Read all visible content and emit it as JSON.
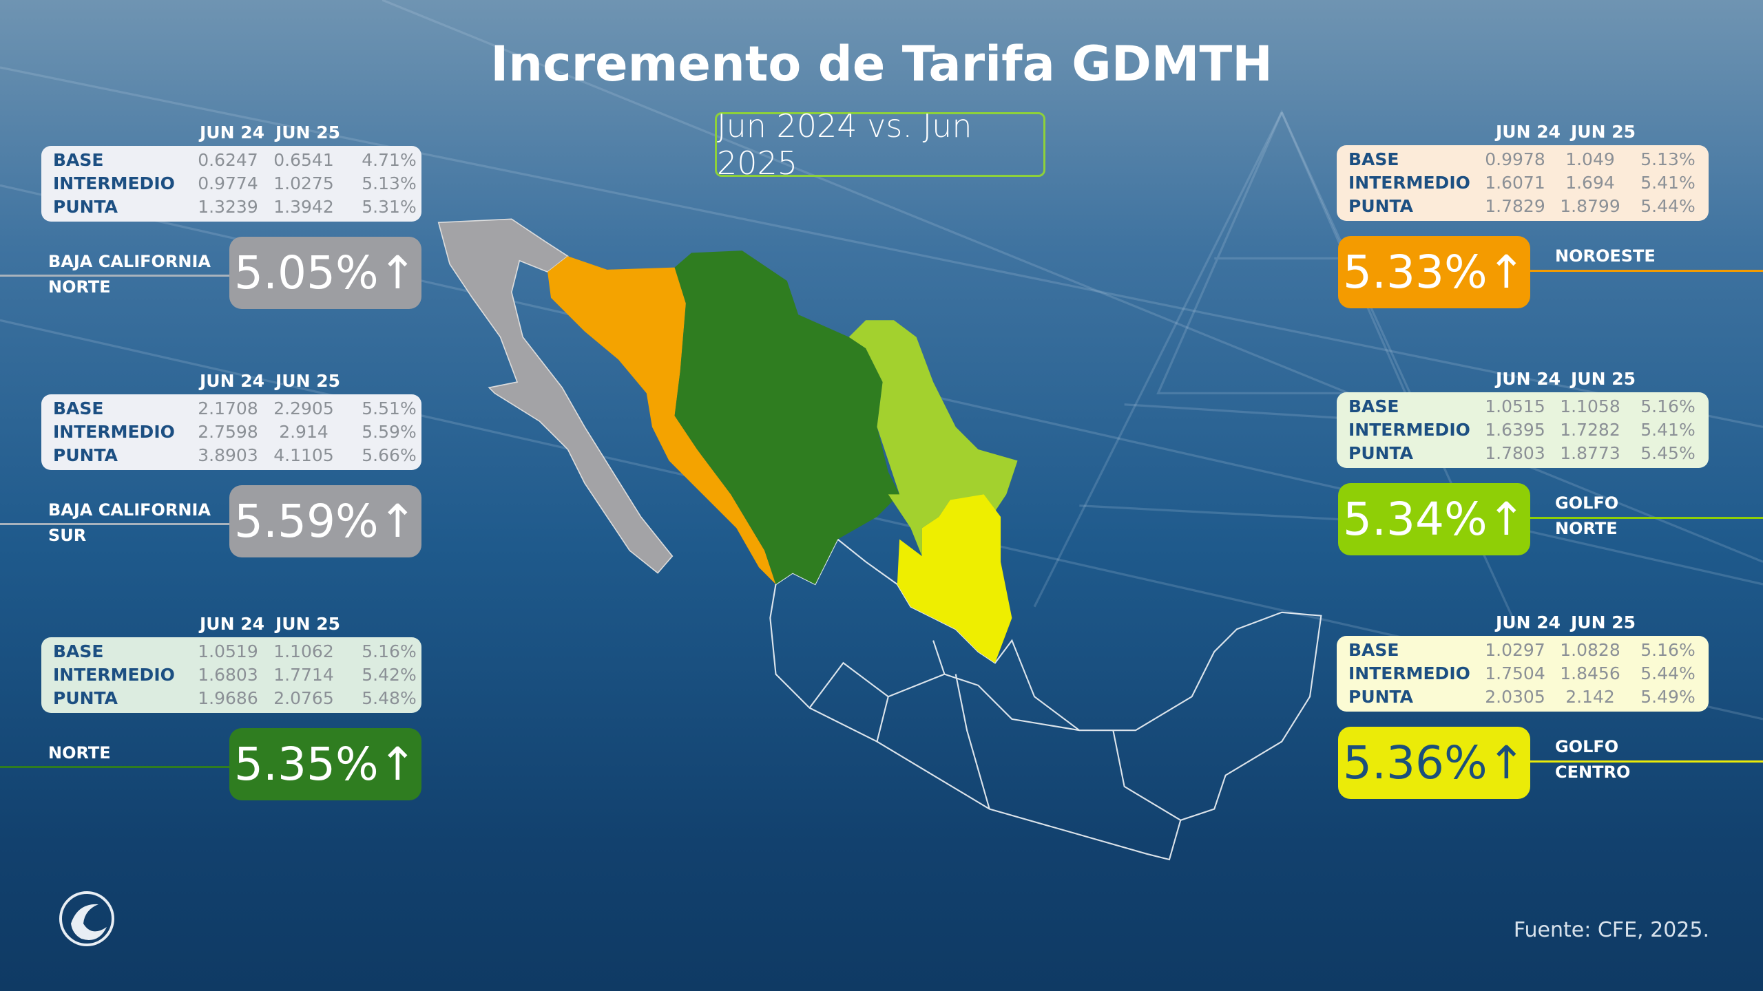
{
  "title": "Incremento de Tarifa GDMTH",
  "subtitle": "Jun 2024 vs. Jun 2025",
  "source": "Fuente: CFE, 2025.",
  "column_headers": [
    "JUN 24",
    "JUN 25"
  ],
  "regions": [
    {
      "id": "baja-california-norte",
      "side": "left",
      "name_lines": [
        "BAJA CALIFORNIA",
        "NORTE"
      ],
      "total": "5.05%↑",
      "color": "#9d9ea2",
      "table_bg": "#eef0f5",
      "line_color": "#a9b3bd",
      "rows": [
        {
          "label": "BASE",
          "jun24": "0.6247",
          "jun25": "0.6541",
          "pct": "4.71%"
        },
        {
          "label": "INTERMEDIO",
          "jun24": "0.9774",
          "jun25": "1.0275",
          "pct": "5.13%"
        },
        {
          "label": "PUNTA",
          "jun24": "1.3239",
          "jun25": "1.3942",
          "pct": "5.31%"
        }
      ]
    },
    {
      "id": "baja-california-sur",
      "side": "left",
      "name_lines": [
        "BAJA CALIFORNIA",
        "SUR"
      ],
      "total": "5.59%↑",
      "color": "#9d9ea2",
      "table_bg": "#eef0f5",
      "line_color": "#a9b3bd",
      "rows": [
        {
          "label": "BASE",
          "jun24": "2.1708",
          "jun25": "2.2905",
          "pct": "5.51%"
        },
        {
          "label": "INTERMEDIO",
          "jun24": "2.7598",
          "jun25": "2.914",
          "pct": "5.59%"
        },
        {
          "label": "PUNTA",
          "jun24": "3.8903",
          "jun25": "4.1105",
          "pct": "5.66%"
        }
      ]
    },
    {
      "id": "norte",
      "side": "left",
      "name_lines": [
        "NORTE"
      ],
      "total": "5.35%↑",
      "color": "#2f7d20",
      "table_bg": "#dcece0",
      "line_color": "#2f7d20",
      "rows": [
        {
          "label": "BASE",
          "jun24": "1.0519",
          "jun25": "1.1062",
          "pct": "5.16%"
        },
        {
          "label": "INTERMEDIO",
          "jun24": "1.6803",
          "jun25": "1.7714",
          "pct": "5.42%"
        },
        {
          "label": "PUNTA",
          "jun24": "1.9686",
          "jun25": "2.0765",
          "pct": "5.48%"
        }
      ]
    },
    {
      "id": "noroeste",
      "side": "right",
      "name_lines": [
        "NOROESTE"
      ],
      "total": "5.33%↑",
      "color": "#f49b00",
      "table_bg": "#fcebd9",
      "line_color": "#f49b00",
      "rows": [
        {
          "label": "BASE",
          "jun24": "0.9978",
          "jun25": "1.049",
          "pct": "5.13%"
        },
        {
          "label": "INTERMEDIO",
          "jun24": "1.6071",
          "jun25": "1.694",
          "pct": "5.41%"
        },
        {
          "label": "PUNTA",
          "jun24": "1.7829",
          "jun25": "1.8799",
          "pct": "5.44%"
        }
      ]
    },
    {
      "id": "golfo-norte",
      "side": "right",
      "name_lines": [
        "GOLFO",
        "NORTE"
      ],
      "total": "5.34%↑",
      "color": "#8fcf06",
      "table_bg": "#e8f4dd",
      "line_color": "#8fcf06",
      "rows": [
        {
          "label": "BASE",
          "jun24": "1.0515",
          "jun25": "1.1058",
          "pct": "5.16%"
        },
        {
          "label": "INTERMEDIO",
          "jun24": "1.6395",
          "jun25": "1.7282",
          "pct": "5.41%"
        },
        {
          "label": "PUNTA",
          "jun24": "1.7803",
          "jun25": "1.8773",
          "pct": "5.45%"
        }
      ]
    },
    {
      "id": "golfo-centro",
      "side": "right",
      "name_lines": [
        "GOLFO",
        "CENTRO"
      ],
      "total": "5.36%↑",
      "color": "#ebeb08",
      "table_bg": "#fbfbd4",
      "line_color": "#ebeb08",
      "text_color": "#1b4f7c",
      "rows": [
        {
          "label": "BASE",
          "jun24": "1.0297",
          "jun25": "1.0828",
          "pct": "5.16%"
        },
        {
          "label": "INTERMEDIO",
          "jun24": "1.7504",
          "jun25": "1.8456",
          "pct": "5.44%"
        },
        {
          "label": "PUNTA",
          "jun24": "2.0305",
          "jun25": "2.142",
          "pct": "5.49%"
        }
      ]
    }
  ],
  "map_colors": {
    "baja_california": "#a3a3a6",
    "noroeste": "#f4a300",
    "norte": "#2f7d20",
    "golfo_norte": "#a3d12e",
    "golfo_centro": "#eeee00",
    "rest_outline": "#ffffff"
  }
}
